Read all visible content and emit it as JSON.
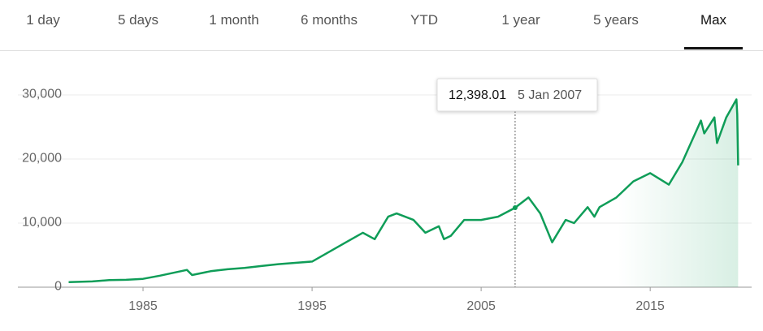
{
  "tabs": [
    "1 day",
    "5 days",
    "1 month",
    "6 months",
    "YTD",
    "1 year",
    "5 years",
    "Max"
  ],
  "active_tab": 7,
  "chart_data": {
    "type": "line",
    "color": "#0f9d58",
    "x": [
      1980.6,
      1982,
      1983,
      1984,
      1985,
      1986,
      1987.6,
      1987.9,
      1989,
      1990,
      1991,
      1992,
      1993,
      1994,
      1995,
      1996,
      1997,
      1998,
      1998.7,
      1999.5,
      2000,
      2001,
      2001.7,
      2002.5,
      2002.8,
      2003.2,
      2004,
      2005,
      2006,
      2007.01,
      2007.8,
      2008.5,
      2009.2,
      2010,
      2010.5,
      2011.3,
      2011.7,
      2012,
      2013,
      2014,
      2015,
      2016.1,
      2016.9,
      2018.0,
      2018.2,
      2018.8,
      2018.95,
      2019.5,
      2020.1,
      2020.15,
      2020.2
    ],
    "values": [
      800,
      900,
      1100,
      1150,
      1300,
      1800,
      2700,
      1900,
      2500,
      2800,
      3000,
      3300,
      3600,
      3800,
      4000,
      5500,
      7000,
      8500,
      7500,
      11000,
      11500,
      10500,
      8500,
      9500,
      7500,
      8000,
      10500,
      10500,
      11000,
      12398.01,
      14000,
      11500,
      7000,
      10500,
      10000,
      12500,
      11000,
      12500,
      14000,
      16500,
      17800,
      16000,
      19500,
      26000,
      24000,
      26500,
      22500,
      26500,
      29300,
      27000,
      19000
    ],
    "xlim": [
      1980,
      2021
    ],
    "ylim": [
      0,
      30000
    ],
    "xticks": [
      1985,
      1995,
      2005,
      2015
    ],
    "yticks": [
      0,
      {
        "value": 10000,
        "label": "10,000"
      },
      {
        "value": 20000,
        "label": "20,000"
      },
      {
        "value": 30000,
        "label": "30,000"
      }
    ],
    "grid": true,
    "tooltip": {
      "x": 2007.01,
      "value": 12398.01,
      "label": "12,398.01",
      "date": "5 Jan 2007"
    }
  }
}
